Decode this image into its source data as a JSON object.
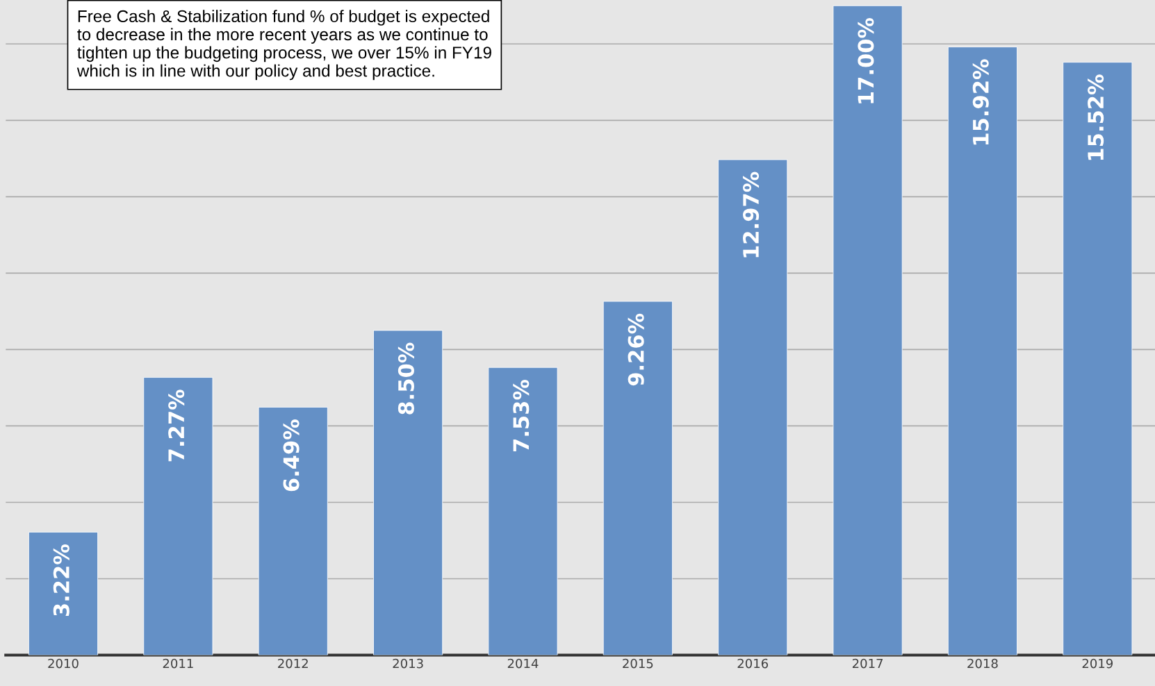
{
  "chart_data": {
    "type": "bar",
    "categories": [
      "2010",
      "2011",
      "2012",
      "2013",
      "2014",
      "2015",
      "2016",
      "2017",
      "2018",
      "2019"
    ],
    "values": [
      3.22,
      7.27,
      6.49,
      8.5,
      7.53,
      9.26,
      12.97,
      17.0,
      15.92,
      15.52
    ],
    "value_labels": [
      "3.22%",
      "7.27%",
      "6.49%",
      "8.50%",
      "7.53%",
      "9.26%",
      "12.97%",
      "17.00%",
      "15.92%",
      "15.52%"
    ],
    "color": "#6490c6",
    "ylim": [
      0,
      17.15
    ],
    "yticks": [
      {
        "value": 2,
        "label": null
      },
      {
        "value": 4,
        "label": null
      },
      {
        "value": 6,
        "label": null
      },
      {
        "value": 8,
        "label": null
      },
      {
        "value": 10,
        "label": null
      },
      {
        "value": 12,
        "label": null
      },
      {
        "value": 14,
        "label": null
      },
      {
        "value": 16,
        "label": null
      }
    ],
    "grid": "y",
    "annotations": [
      "Free Cash & Stabilization fund % of budget is expected\nto decrease in the more recent years as we continue to\ntighten up the budgeting process, we over 15% in FY19\nwhich is in line with our policy and best practice."
    ]
  }
}
